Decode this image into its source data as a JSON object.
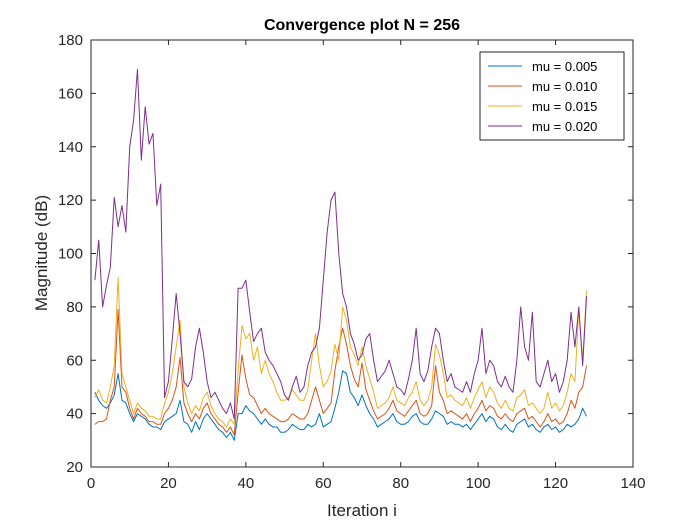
{
  "chart_data": {
    "type": "line",
    "title": "Convergence plot N = 256",
    "xlabel": "Iteration i",
    "ylabel": "Magnitude (dB)",
    "xlim": [
      0,
      140
    ],
    "ylim": [
      20,
      180
    ],
    "xticks": [
      0,
      20,
      40,
      60,
      80,
      100,
      120,
      140
    ],
    "yticks": [
      20,
      40,
      60,
      80,
      100,
      120,
      140,
      160,
      180
    ],
    "grid": false,
    "legend_position": "top-right",
    "series": [
      {
        "name": "mu = 0.005",
        "color": "#0072BD",
        "x": [
          1,
          2,
          3,
          4,
          5,
          6,
          7,
          8,
          9,
          10,
          11,
          12,
          13,
          14,
          15,
          16,
          17,
          18,
          19,
          20,
          21,
          22,
          23,
          24,
          25,
          26,
          27,
          28,
          29,
          30,
          31,
          32,
          33,
          34,
          35,
          36,
          37,
          38,
          39,
          40,
          41,
          42,
          43,
          44,
          45,
          46,
          47,
          48,
          49,
          50,
          51,
          52,
          53,
          54,
          55,
          56,
          57,
          58,
          59,
          60,
          61,
          62,
          63,
          64,
          65,
          66,
          67,
          68,
          69,
          70,
          71,
          72,
          73,
          74,
          75,
          76,
          77,
          78,
          79,
          80,
          81,
          82,
          83,
          84,
          85,
          86,
          87,
          88,
          89,
          90,
          91,
          92,
          93,
          94,
          95,
          96,
          97,
          98,
          99,
          100,
          101,
          102,
          103,
          104,
          105,
          106,
          107,
          108,
          109,
          110,
          111,
          112,
          113,
          114,
          115,
          116,
          117,
          118,
          119,
          120,
          121,
          122,
          123,
          124,
          125,
          126,
          127,
          128
        ],
        "y": [
          48,
          45,
          43,
          42,
          44,
          47,
          55,
          45,
          44,
          40,
          37,
          40,
          39,
          38,
          36,
          35,
          35,
          34,
          37,
          38,
          39,
          40,
          45,
          37,
          36,
          33,
          37,
          34,
          38,
          40,
          38,
          36,
          34,
          33,
          31,
          33,
          30,
          40,
          40,
          43,
          41,
          40,
          38,
          36,
          38,
          36,
          35,
          35,
          33,
          33,
          34,
          36,
          35,
          34,
          34,
          36,
          35,
          36,
          40,
          35,
          36,
          37,
          42,
          48,
          56,
          55,
          48,
          46,
          43,
          47,
          43,
          40,
          38,
          35,
          36,
          37,
          38,
          40,
          37,
          36,
          36,
          37,
          39,
          40,
          37,
          36,
          36,
          38,
          41,
          40,
          39,
          36,
          37,
          36,
          36,
          35,
          36,
          34,
          36,
          38,
          40,
          37,
          39,
          38,
          35,
          34,
          36,
          34,
          33,
          36,
          37,
          38,
          35,
          36,
          34,
          33,
          35,
          36,
          34,
          35,
          33,
          34,
          36,
          35,
          36,
          38,
          42,
          39
        ]
      },
      {
        "name": "mu = 0.010",
        "color": "#D95319",
        "x": [
          1,
          2,
          3,
          4,
          5,
          6,
          7,
          8,
          9,
          10,
          11,
          12,
          13,
          14,
          15,
          16,
          17,
          18,
          19,
          20,
          21,
          22,
          23,
          24,
          25,
          26,
          27,
          28,
          29,
          30,
          31,
          32,
          33,
          34,
          35,
          36,
          37,
          38,
          39,
          40,
          41,
          42,
          43,
          44,
          45,
          46,
          47,
          48,
          49,
          50,
          51,
          52,
          53,
          54,
          55,
          56,
          57,
          58,
          59,
          60,
          61,
          62,
          63,
          64,
          65,
          66,
          67,
          68,
          69,
          70,
          71,
          72,
          73,
          74,
          75,
          76,
          77,
          78,
          79,
          80,
          81,
          82,
          83,
          84,
          85,
          86,
          87,
          88,
          89,
          90,
          91,
          92,
          93,
          94,
          95,
          96,
          97,
          98,
          99,
          100,
          101,
          102,
          103,
          104,
          105,
          106,
          107,
          108,
          109,
          110,
          111,
          112,
          113,
          114,
          115,
          116,
          117,
          118,
          119,
          120,
          121,
          122,
          123,
          124,
          125,
          126,
          127,
          128
        ],
        "y": [
          36,
          37,
          37,
          38,
          45,
          50,
          79,
          50,
          48,
          42,
          38,
          42,
          40,
          39,
          37,
          37,
          36,
          36,
          40,
          42,
          45,
          50,
          61,
          44,
          40,
          37,
          40,
          38,
          42,
          44,
          40,
          38,
          36,
          35,
          33,
          35,
          32,
          48,
          62,
          53,
          47,
          46,
          43,
          40,
          42,
          40,
          39,
          38,
          37,
          37,
          38,
          40,
          39,
          38,
          38,
          40,
          45,
          50,
          45,
          40,
          42,
          44,
          56,
          65,
          72,
          66,
          58,
          53,
          50,
          59,
          49,
          45,
          41,
          38,
          39,
          40,
          42,
          45,
          41,
          40,
          39,
          41,
          43,
          45,
          40,
          39,
          40,
          43,
          58,
          48,
          45,
          40,
          41,
          40,
          39,
          38,
          40,
          37,
          40,
          42,
          45,
          41,
          43,
          42,
          39,
          38,
          40,
          38,
          37,
          40,
          41,
          42,
          38,
          39,
          37,
          35,
          37,
          40,
          37,
          38,
          36,
          37,
          40,
          45,
          42,
          48,
          50,
          58
        ]
      },
      {
        "name": "mu = 0.015",
        "color": "#EDB120",
        "x": [
          1,
          2,
          3,
          4,
          5,
          6,
          7,
          8,
          9,
          10,
          11,
          12,
          13,
          14,
          15,
          16,
          17,
          18,
          19,
          20,
          21,
          22,
          23,
          24,
          25,
          26,
          27,
          28,
          29,
          30,
          31,
          32,
          33,
          34,
          35,
          36,
          37,
          38,
          39,
          40,
          41,
          42,
          43,
          44,
          45,
          46,
          47,
          48,
          49,
          50,
          51,
          52,
          53,
          54,
          55,
          56,
          57,
          58,
          59,
          60,
          61,
          62,
          63,
          64,
          65,
          66,
          67,
          68,
          69,
          70,
          71,
          72,
          73,
          74,
          75,
          76,
          77,
          78,
          79,
          80,
          81,
          82,
          83,
          84,
          85,
          86,
          87,
          88,
          89,
          90,
          91,
          92,
          93,
          94,
          95,
          96,
          97,
          98,
          99,
          100,
          101,
          102,
          103,
          104,
          105,
          106,
          107,
          108,
          109,
          110,
          111,
          112,
          113,
          114,
          115,
          116,
          117,
          118,
          119,
          120,
          121,
          122,
          123,
          124,
          125,
          126,
          127,
          128
        ],
        "y": [
          46,
          49,
          45,
          44,
          50,
          58,
          91,
          55,
          50,
          45,
          40,
          44,
          42,
          41,
          39,
          39,
          38,
          38,
          44,
          48,
          55,
          65,
          75,
          50,
          44,
          40,
          43,
          41,
          46,
          48,
          43,
          40,
          38,
          37,
          35,
          38,
          36,
          56,
          73,
          68,
          70,
          60,
          65,
          55,
          60,
          55,
          52,
          48,
          45,
          45,
          46,
          49,
          47,
          45,
          45,
          49,
          60,
          70,
          58,
          50,
          52,
          56,
          66,
          60,
          80,
          75,
          65,
          62,
          58,
          65,
          58,
          53,
          48,
          42,
          43,
          44,
          46,
          50,
          45,
          44,
          43,
          46,
          48,
          52,
          45,
          43,
          45,
          50,
          66,
          62,
          55,
          46,
          47,
          45,
          44,
          43,
          46,
          42,
          46,
          49,
          52,
          46,
          50,
          48,
          44,
          42,
          45,
          42,
          41,
          46,
          47,
          49,
          43,
          44,
          42,
          40,
          42,
          48,
          42,
          44,
          41,
          43,
          48,
          55,
          52,
          79,
          60,
          86
        ]
      },
      {
        "name": "mu = 0.020",
        "color": "#7E2F8E",
        "x": [
          1,
          2,
          3,
          4,
          5,
          6,
          7,
          8,
          9,
          10,
          11,
          12,
          13,
          14,
          15,
          16,
          17,
          18,
          19,
          20,
          21,
          22,
          23,
          24,
          25,
          26,
          27,
          28,
          29,
          30,
          31,
          32,
          33,
          34,
          35,
          36,
          37,
          38,
          39,
          40,
          41,
          42,
          43,
          44,
          45,
          46,
          47,
          48,
          49,
          50,
          51,
          52,
          53,
          54,
          55,
          56,
          57,
          58,
          59,
          60,
          61,
          62,
          63,
          64,
          65,
          66,
          67,
          68,
          69,
          70,
          71,
          72,
          73,
          74,
          75,
          76,
          77,
          78,
          79,
          80,
          81,
          82,
          83,
          84,
          85,
          86,
          87,
          88,
          89,
          90,
          91,
          92,
          93,
          94,
          95,
          96,
          97,
          98,
          99,
          100,
          101,
          102,
          103,
          104,
          105,
          106,
          107,
          108,
          109,
          110,
          111,
          112,
          113,
          114,
          115,
          116,
          117,
          118,
          119,
          120,
          121,
          122,
          123,
          124,
          125,
          126,
          127,
          128
        ],
        "y": [
          90,
          105,
          80,
          88,
          95,
          121,
          110,
          118,
          108,
          140,
          150,
          169,
          135,
          155,
          141,
          145,
          118,
          126,
          46,
          52,
          68,
          85,
          70,
          52,
          50,
          53,
          65,
          72,
          63,
          52,
          46,
          48,
          45,
          42,
          40,
          44,
          38,
          87,
          87,
          90,
          78,
          67,
          70,
          72,
          63,
          60,
          58,
          55,
          52,
          47,
          45,
          50,
          54,
          48,
          50,
          58,
          63,
          65,
          72,
          90,
          108,
          120,
          123,
          100,
          85,
          80,
          70,
          66,
          60,
          62,
          68,
          70,
          60,
          52,
          54,
          56,
          60,
          55,
          50,
          49,
          47,
          53,
          60,
          72,
          55,
          52,
          56,
          65,
          72,
          70,
          60,
          52,
          55,
          50,
          49,
          48,
          52,
          48,
          55,
          60,
          72,
          55,
          60,
          58,
          52,
          50,
          54,
          50,
          48,
          60,
          80,
          65,
          60,
          78,
          52,
          50,
          55,
          60,
          52,
          55,
          48,
          52,
          60,
          78,
          65,
          80,
          58,
          84
        ]
      }
    ]
  }
}
